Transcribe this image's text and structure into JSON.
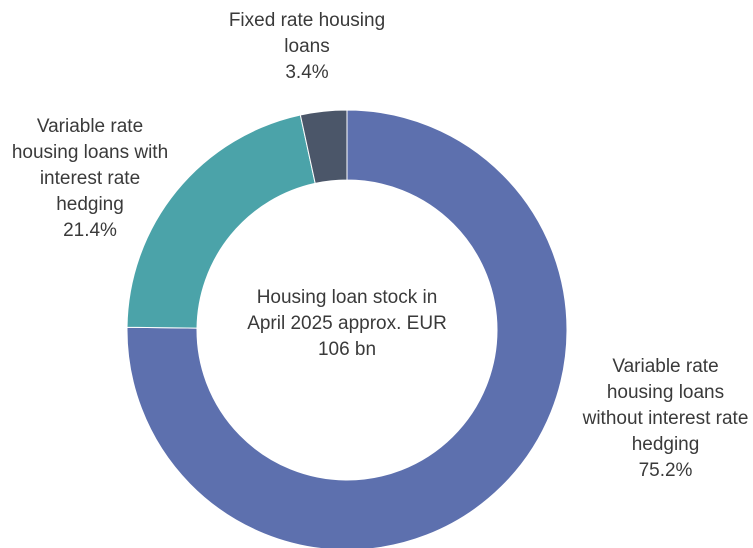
{
  "chart_data": {
    "type": "donut",
    "categories": [
      "Variable rate housing loans without interest rate hedging",
      "Variable rate housing loans with interest rate hedging",
      "Fixed rate housing loans"
    ],
    "values": [
      75.2,
      21.4,
      3.4
    ],
    "value_labels": [
      "75.2%",
      "21.4%",
      "3.4%"
    ],
    "colors": [
      "#5d70ae",
      "#4ba3a9",
      "#4b5669"
    ],
    "center_text": "Housing loan stock in April 2025 approx. EUR 106 bn"
  }
}
